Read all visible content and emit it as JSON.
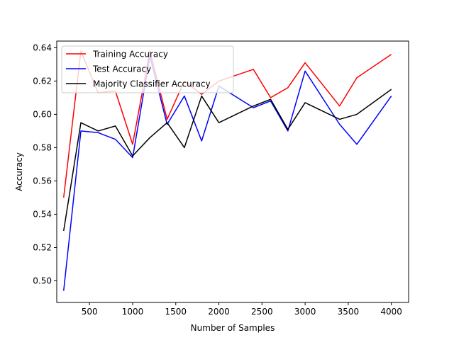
{
  "chart_data": {
    "type": "line",
    "title": "",
    "xlabel": "Number of Samples",
    "ylabel": "Accuracy",
    "xlim": [
      120,
      4200
    ],
    "ylim": [
      0.487,
      0.644
    ],
    "xticks": [
      500,
      1000,
      1500,
      2000,
      2500,
      3000,
      3500,
      4000
    ],
    "yticks": [
      0.5,
      0.52,
      0.54,
      0.56,
      0.58,
      0.6,
      0.62,
      0.64
    ],
    "xtick_labels": [
      "500",
      "1000",
      "1500",
      "2000",
      "2500",
      "3000",
      "3500",
      "4000"
    ],
    "ytick_labels": [
      "0.50",
      "0.52",
      "0.54",
      "0.56",
      "0.58",
      "0.60",
      "0.62",
      "0.64"
    ],
    "grid": false,
    "legend_position": "top-left",
    "x": [
      200,
      400,
      600,
      800,
      1000,
      1200,
      1400,
      1600,
      1800,
      2000,
      2400,
      2600,
      2800,
      3000,
      3400,
      3600,
      4000
    ],
    "series": [
      {
        "name": "Training Accuracy",
        "color": "#ff0000",
        "values": [
          0.55,
          0.638,
          0.613,
          0.614,
          0.582,
          0.638,
          0.597,
          0.62,
          0.612,
          0.62,
          0.627,
          0.61,
          0.616,
          0.631,
          0.605,
          0.622,
          0.636
        ]
      },
      {
        "name": "Test Accuracy",
        "color": "#0000ff",
        "values": [
          0.494,
          0.59,
          0.589,
          0.585,
          0.574,
          0.635,
          0.594,
          0.611,
          0.584,
          0.617,
          0.604,
          0.608,
          0.59,
          0.626,
          0.594,
          0.582,
          0.611
        ]
      },
      {
        "name": "Majority Classifier Accuracy",
        "color": "#000000",
        "values": [
          0.53,
          0.595,
          0.59,
          0.593,
          0.575,
          0.586,
          0.595,
          0.58,
          0.611,
          0.595,
          0.605,
          0.609,
          0.591,
          0.607,
          0.597,
          0.6,
          0.615
        ]
      }
    ]
  }
}
